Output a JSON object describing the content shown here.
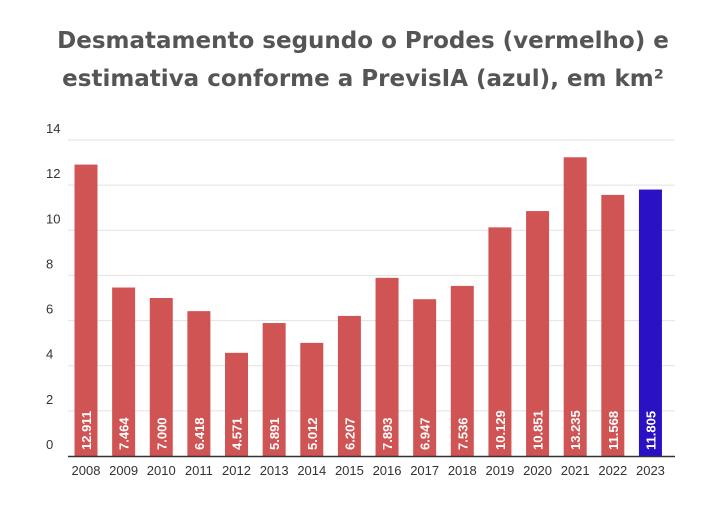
{
  "chart_data": {
    "type": "bar",
    "title_lines": [
      "Desmatamento segundo o Prodes (vermelho) e",
      "estimativa conforme a PrevisIA (azul), em km²"
    ],
    "categories": [
      "2008",
      "2009",
      "2010",
      "2011",
      "2012",
      "2013",
      "2014",
      "2015",
      "2016",
      "2017",
      "2018",
      "2019",
      "2020",
      "2021",
      "2022",
      "2023"
    ],
    "values": [
      12.911,
      7.464,
      7.0,
      6.418,
      4.571,
      5.891,
      5.012,
      6.207,
      7.893,
      6.947,
      7.536,
      10.129,
      10.851,
      13.235,
      11.568,
      11.805
    ],
    "data_labels": [
      "12.911",
      "7.464",
      "7.000",
      "6.418",
      "4.571",
      "5.891",
      "5.012",
      "6.207",
      "7.893",
      "6.947",
      "7.536",
      "10.129",
      "10.851",
      "13.235",
      "11.568",
      "11.805"
    ],
    "series_colors": [
      "#d05454",
      "#d05454",
      "#d05454",
      "#d05454",
      "#d05454",
      "#d05454",
      "#d05454",
      "#d05454",
      "#d05454",
      "#d05454",
      "#d05454",
      "#d05454",
      "#d05454",
      "#d05454",
      "#d05454",
      "#2a12c4"
    ],
    "ylim": [
      0,
      14
    ],
    "yticks": [
      "0",
      "2",
      "4",
      "6",
      "8",
      "10",
      "12",
      "14"
    ],
    "grid": true,
    "xlabel": "",
    "ylabel": ""
  }
}
